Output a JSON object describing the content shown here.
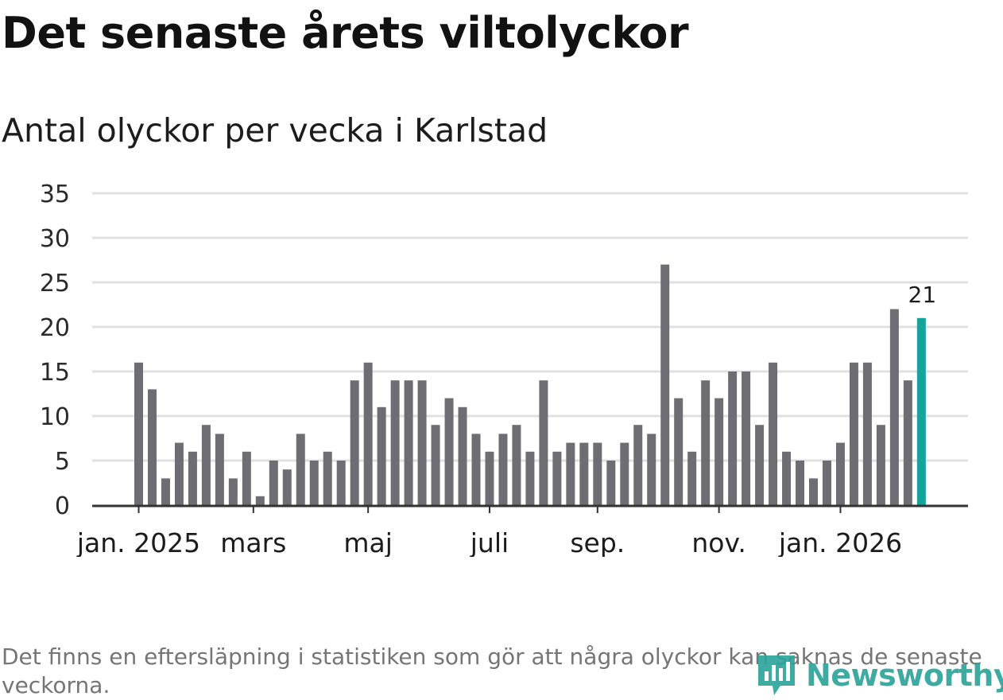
{
  "title": "Det senaste årets viltolyckor",
  "subtitle": "Antal olyckor per vecka i Karlstad",
  "footnote": "Det finns en eftersläpning i statistiken som gör att några olyckor kan saknas de senaste veckorna.",
  "brand": {
    "name": "Newsworthy"
  },
  "colors": {
    "bar": "#6e6d73",
    "highlight": "#14a49c",
    "grid": "#e0e0e0",
    "axis": "#333333",
    "brand": "#2aa39a"
  },
  "chart_data": {
    "type": "bar",
    "title": "Det senaste årets viltolyckor",
    "subtitle": "Antal olyckor per vecka i Karlstad",
    "xlabel": "",
    "ylabel": "",
    "ylim": [
      0,
      35
    ],
    "y_ticks": [
      "0",
      "5",
      "10",
      "15",
      "20",
      "25",
      "30",
      "35"
    ],
    "x_tick_labels": [
      {
        "label": "jan. 2025",
        "index": 0
      },
      {
        "label": "mars",
        "index": 8.5
      },
      {
        "label": "maj",
        "index": 17
      },
      {
        "label": "juli",
        "index": 26
      },
      {
        "label": "sep.",
        "index": 34
      },
      {
        "label": "nov.",
        "index": 43
      },
      {
        "label": "jan. 2026",
        "index": 52
      }
    ],
    "values": [
      16,
      13,
      3,
      7,
      6,
      9,
      8,
      3,
      6,
      1,
      5,
      4,
      8,
      5,
      6,
      5,
      14,
      16,
      11,
      14,
      14,
      14,
      9,
      12,
      11,
      8,
      6,
      8,
      9,
      6,
      14,
      6,
      7,
      7,
      7,
      5,
      7,
      9,
      8,
      27,
      12,
      6,
      14,
      12,
      15,
      15,
      9,
      16,
      6,
      5,
      3,
      5,
      7,
      16,
      16,
      9,
      22,
      14,
      21
    ],
    "highlight_index": 58,
    "highlight_label": "21",
    "grid": true,
    "legend": "none"
  }
}
